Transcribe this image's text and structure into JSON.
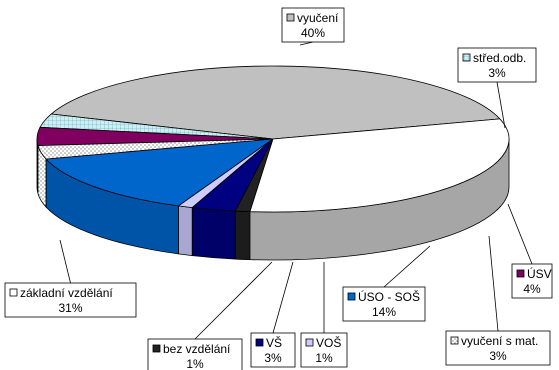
{
  "chart_data": {
    "type": "pie",
    "title": "",
    "slices": [
      {
        "label": "vyučení",
        "pct_text": "40%",
        "value": 40,
        "color": "#c0c0c0",
        "pattern": "solid"
      },
      {
        "label": "střed.odb.",
        "pct_text": "3%",
        "value": 3,
        "color": "#cdeef3",
        "pattern": "grid"
      },
      {
        "label": "ÚSV",
        "pct_text": "4%",
        "value": 4,
        "color": "#800060",
        "pattern": "solid"
      },
      {
        "label": "vyučení s mat.",
        "pct_text": "3%",
        "value": 3,
        "color": "#ffffff",
        "pattern": "dots"
      },
      {
        "label": "ÚSO - SOŠ",
        "pct_text": "14%",
        "value": 14,
        "color": "#0066cc",
        "pattern": "solid"
      },
      {
        "label": "VOŠ",
        "pct_text": "1%",
        "value": 1,
        "color": "#ccccff",
        "pattern": "solid"
      },
      {
        "label": "VŠ",
        "pct_text": "3%",
        "value": 3,
        "color": "#000080",
        "pattern": "solid"
      },
      {
        "label": "bez vzdělání",
        "pct_text": "1%",
        "value": 1,
        "color": "#222222",
        "pattern": "solid"
      },
      {
        "label": "základní vzdělání",
        "pct_text": "31%",
        "value": 31,
        "color": "#ffffff",
        "pattern": "solid"
      }
    ]
  }
}
